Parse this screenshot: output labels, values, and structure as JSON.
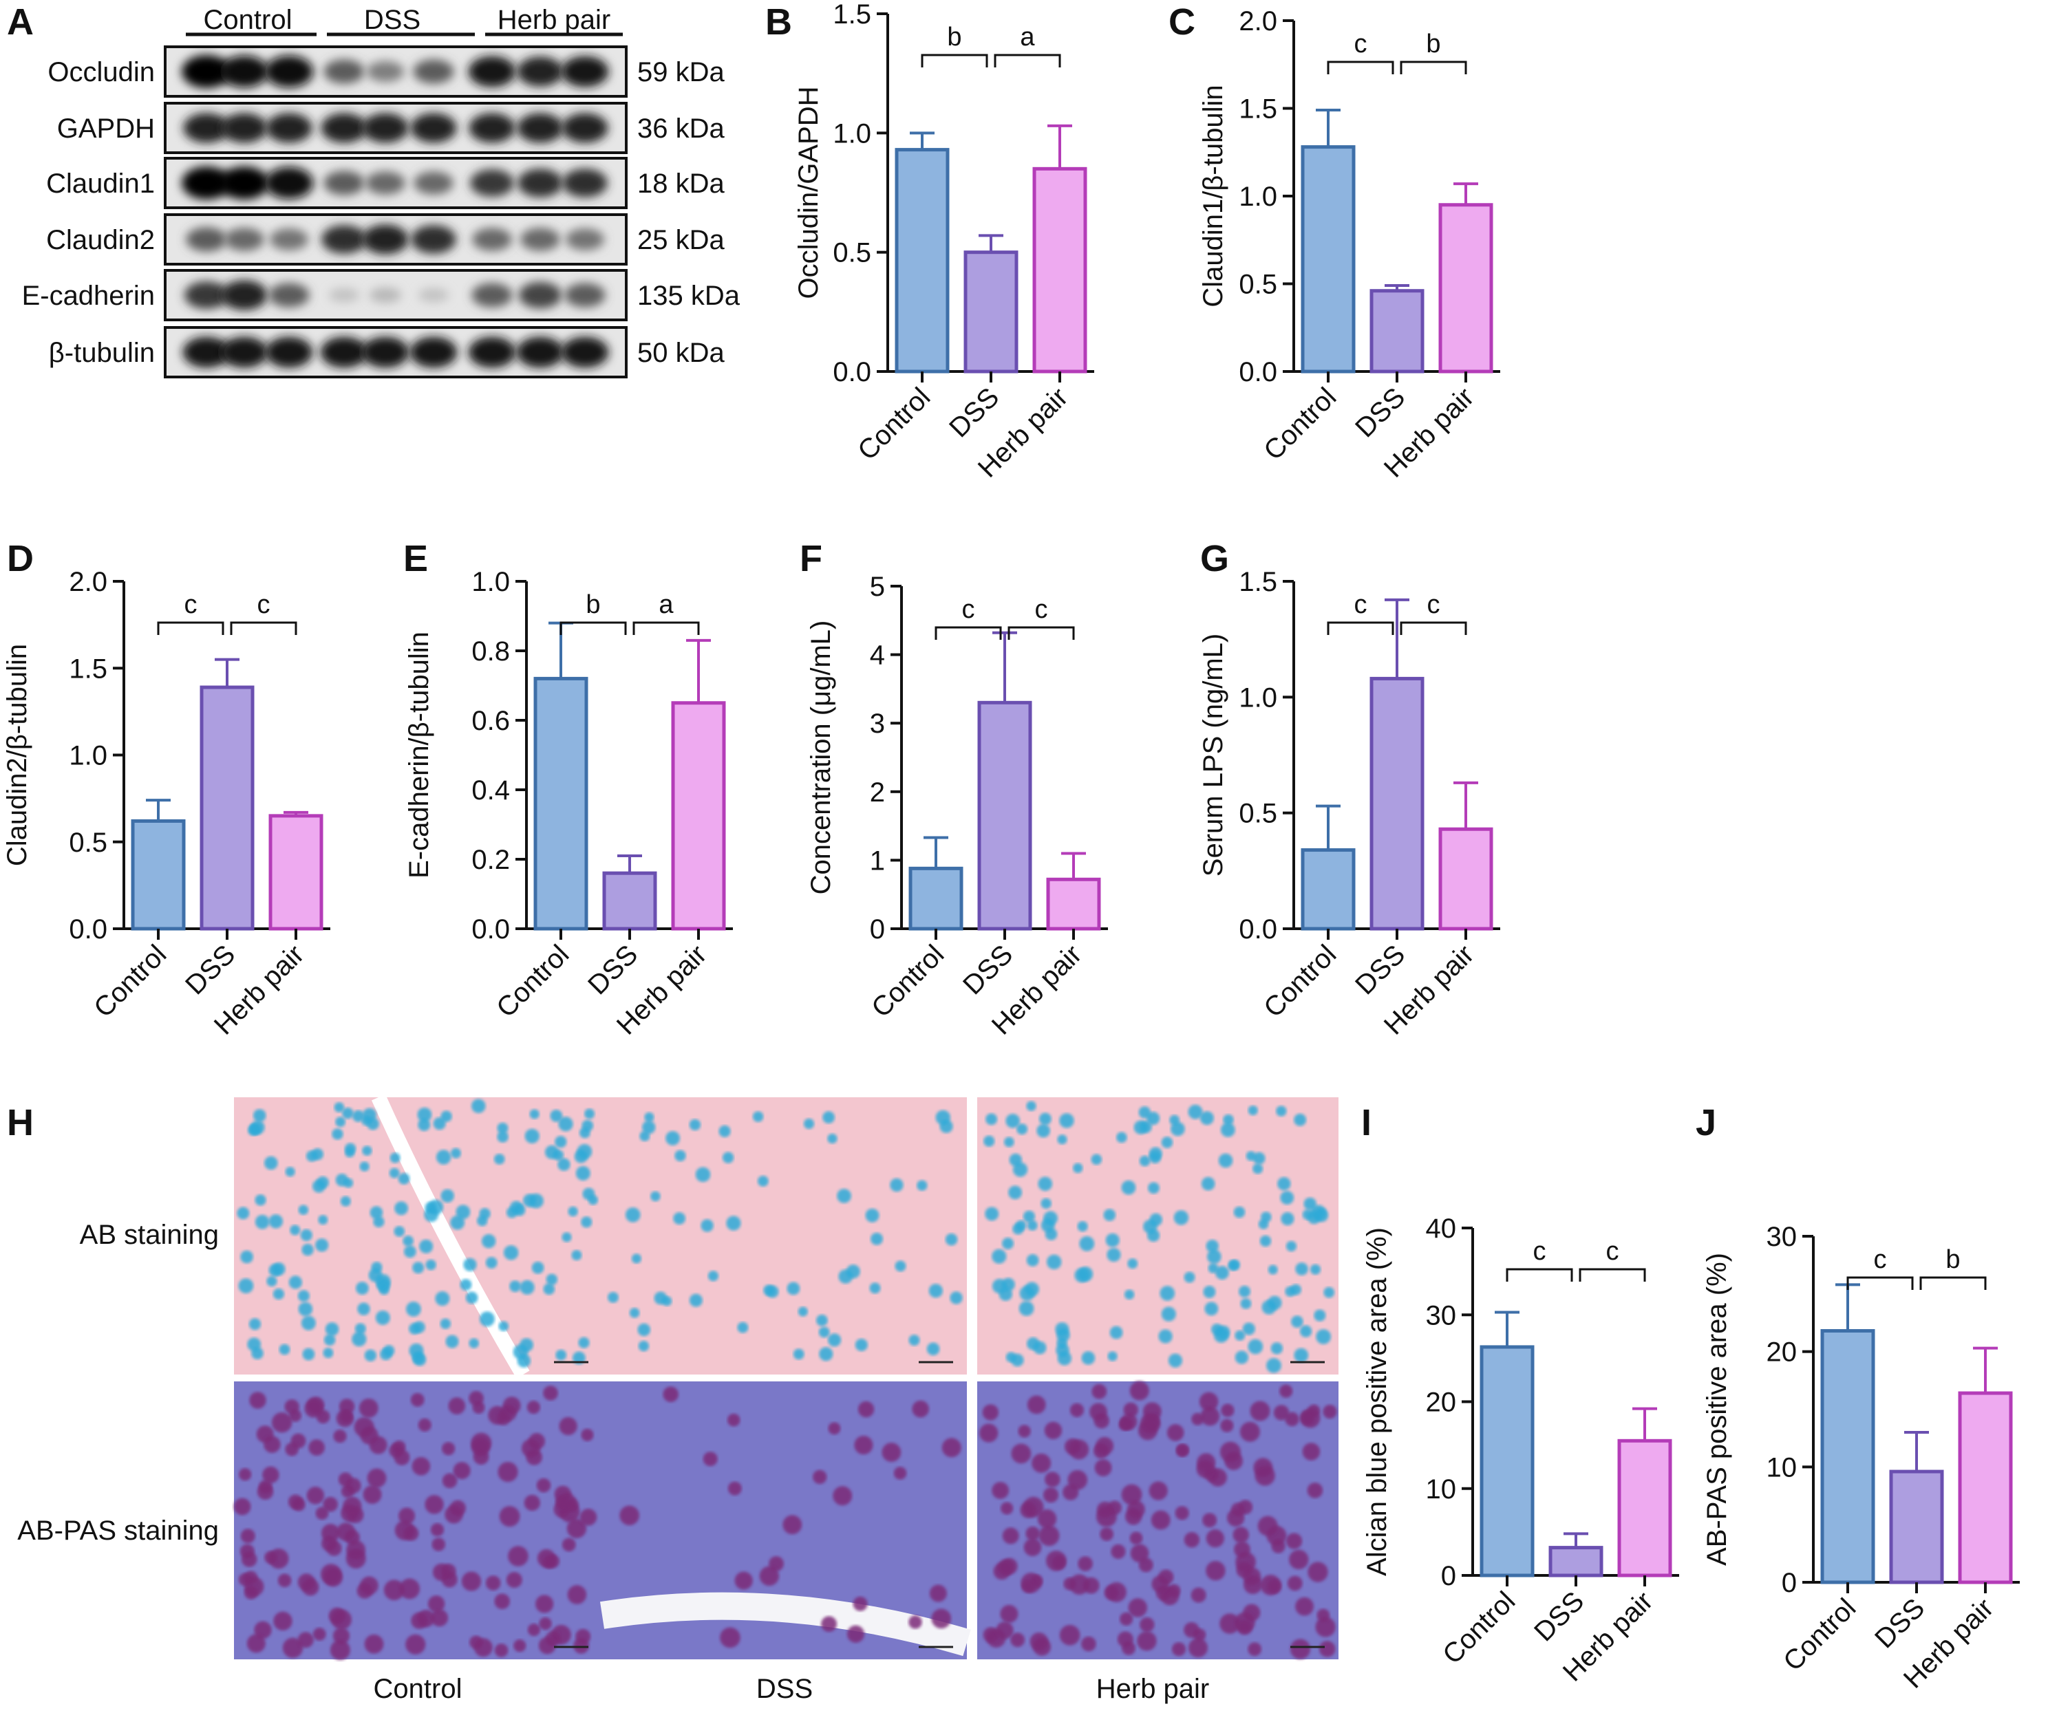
{
  "colors": {
    "control_fill": "#8eb4df",
    "control_stroke": "#3e6fa8",
    "dss_fill": "#ad9ee0",
    "dss_stroke": "#6a4fb0",
    "herb_fill": "#eeaaf0",
    "herb_stroke": "#b43cb8",
    "ab_stain": "#f3c6cf",
    "ab_goblet": "#2eaad8",
    "abpas_stain": "#7a78c8",
    "abpas_goblet": "#7b2a78"
  },
  "panels": {
    "A": "A",
    "B": "B",
    "C": "C",
    "D": "D",
    "E": "E",
    "F": "F",
    "G": "G",
    "H": "H",
    "I": "I",
    "J": "J"
  },
  "blot": {
    "groups": [
      "Control",
      "DSS",
      "Herb pair"
    ],
    "rows": [
      {
        "protein": "Occludin",
        "size": "59 kDa",
        "intensity": [
          1.0,
          0.95,
          0.95,
          0.6,
          0.45,
          0.6,
          0.9,
          0.85,
          0.9
        ]
      },
      {
        "protein": "GAPDH",
        "size": "36 kDa",
        "intensity": [
          0.85,
          0.85,
          0.85,
          0.85,
          0.85,
          0.85,
          0.85,
          0.85,
          0.85
        ]
      },
      {
        "protein": "Claudin1",
        "size": "18 kDa",
        "intensity": [
          1.0,
          1.0,
          0.95,
          0.6,
          0.55,
          0.55,
          0.75,
          0.8,
          0.8
        ]
      },
      {
        "protein": "Claudin2",
        "size": "25 kDa",
        "intensity": [
          0.6,
          0.55,
          0.5,
          0.8,
          0.85,
          0.8,
          0.55,
          0.55,
          0.5
        ]
      },
      {
        "protein": "E-cadherin",
        "size": "135 kDa",
        "intensity": [
          0.75,
          0.85,
          0.6,
          0.15,
          0.2,
          0.15,
          0.6,
          0.7,
          0.6
        ]
      },
      {
        "protein": "β-tubulin",
        "size": "50 kDa",
        "intensity": [
          0.9,
          0.9,
          0.9,
          0.9,
          0.9,
          0.9,
          0.9,
          0.9,
          0.9
        ]
      }
    ]
  },
  "histology": {
    "rows": [
      "AB staining",
      "AB-PAS staining"
    ],
    "columns": [
      "Control",
      "DSS",
      "Herb pair"
    ]
  },
  "chart_data": [
    {
      "panel": "B",
      "type": "bar",
      "categories": [
        "Control",
        "DSS",
        "Herb pair"
      ],
      "values": [
        0.93,
        0.5,
        0.85
      ],
      "errors": [
        0.07,
        0.07,
        0.18
      ],
      "ylabel": "Occludin/GAPDH",
      "ylim": [
        0,
        1.5
      ],
      "yticks": [
        "0.0",
        "0.5",
        "1.0",
        "1.5"
      ],
      "significance": [
        "b",
        "a"
      ]
    },
    {
      "panel": "C",
      "type": "bar",
      "categories": [
        "Control",
        "DSS",
        "Herb pair"
      ],
      "values": [
        1.28,
        0.46,
        0.95
      ],
      "errors": [
        0.21,
        0.03,
        0.12
      ],
      "ylabel": "Claudin1/β-tubulin",
      "ylim": [
        0,
        2.0
      ],
      "yticks": [
        "0.0",
        "0.5",
        "1.0",
        "1.5",
        "2.0"
      ],
      "significance": [
        "c",
        "b"
      ]
    },
    {
      "panel": "D",
      "type": "bar",
      "categories": [
        "Control",
        "DSS",
        "Herb pair"
      ],
      "values": [
        0.62,
        1.39,
        0.65
      ],
      "errors": [
        0.12,
        0.16,
        0.02
      ],
      "ylabel": "Claudin2/β-tubulin",
      "ylim": [
        0,
        2.0
      ],
      "yticks": [
        "0.0",
        "0.5",
        "1.0",
        "1.5",
        "2.0"
      ],
      "significance": [
        "c",
        "c"
      ]
    },
    {
      "panel": "E",
      "type": "bar",
      "categories": [
        "Control",
        "DSS",
        "Herb pair"
      ],
      "values": [
        0.72,
        0.16,
        0.65
      ],
      "errors": [
        0.16,
        0.05,
        0.18
      ],
      "ylabel": "E-cadherin/β-tubulin",
      "ylim": [
        0,
        1.0
      ],
      "yticks": [
        "0.0",
        "0.2",
        "0.4",
        "0.6",
        "0.8",
        "1.0"
      ],
      "significance": [
        "b",
        "a"
      ]
    },
    {
      "panel": "F",
      "type": "bar",
      "categories": [
        "Control",
        "DSS",
        "Herb pair"
      ],
      "values": [
        0.88,
        3.3,
        0.72
      ],
      "errors": [
        0.45,
        1.02,
        0.38
      ],
      "ylabel": "Concentration (μg/mL)",
      "ylim": [
        0,
        5
      ],
      "yticks": [
        "0",
        "1",
        "2",
        "3",
        "4",
        "5"
      ],
      "significance": [
        "c",
        "c"
      ]
    },
    {
      "panel": "G",
      "type": "bar",
      "categories": [
        "Control",
        "DSS",
        "Herb pair"
      ],
      "values": [
        0.34,
        1.08,
        0.43
      ],
      "errors": [
        0.19,
        0.34,
        0.2
      ],
      "ylabel": "Serum LPS (ng/mL)",
      "ylim": [
        0,
        1.5
      ],
      "yticks": [
        "0.0",
        "0.5",
        "1.0",
        "1.5"
      ],
      "significance": [
        "c",
        "c"
      ]
    },
    {
      "panel": "I",
      "type": "bar",
      "categories": [
        "Control",
        "DSS",
        "Herb pair"
      ],
      "values": [
        26.3,
        3.2,
        15.5
      ],
      "errors": [
        4.0,
        1.6,
        3.7
      ],
      "ylabel": "Alcian blue positive area (%)",
      "ylim": [
        0,
        40
      ],
      "yticks": [
        "0",
        "10",
        "20",
        "30",
        "40"
      ],
      "significance": [
        "c",
        "c"
      ]
    },
    {
      "panel": "J",
      "type": "bar",
      "categories": [
        "Control",
        "DSS",
        "Herb pair"
      ],
      "values": [
        21.8,
        9.6,
        16.4
      ],
      "errors": [
        4.0,
        3.4,
        3.9
      ],
      "ylabel": "AB-PAS positive area (%)",
      "ylim": [
        0,
        30
      ],
      "yticks": [
        "0",
        "10",
        "20",
        "30"
      ],
      "significance": [
        "c",
        "b"
      ]
    }
  ]
}
